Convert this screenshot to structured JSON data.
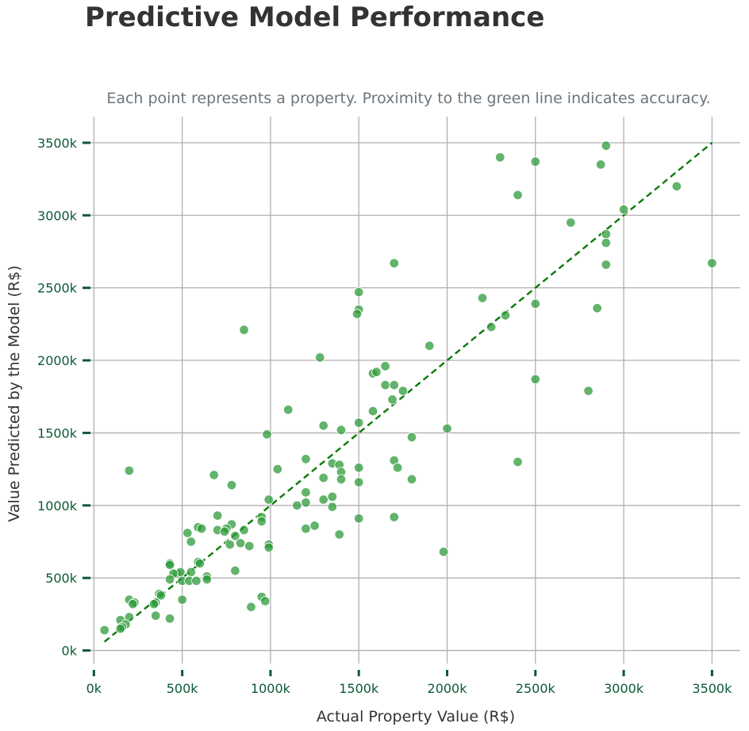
{
  "title": "Predictive Model Performance",
  "subtitle": "Each point represents a property. Proximity to the green line indicates accuracy.",
  "colors": {
    "points": "#2e9a3a",
    "reference_line": "#0a7a0a",
    "tick_text": "#0b5a35",
    "tick_mark": "#0b5a35",
    "grid": "#b0b0b0",
    "title": "#333333",
    "subtitle": "#6c757d"
  },
  "chart_data": {
    "type": "scatter",
    "title": "Predictive Model Performance",
    "subtitle": "Each point represents a property. Proximity to the green line indicates accuracy.",
    "xlabel": "Actual Property Value (R$)",
    "ylabel": "Value Predicted by the Model (R$)",
    "xlim": [
      -60000,
      3660000
    ],
    "ylim": [
      -90000,
      3680000
    ],
    "x_ticks": [
      0,
      500000,
      1000000,
      1500000,
      2000000,
      2500000,
      3000000,
      3500000
    ],
    "x_tick_labels": [
      "0k",
      "500k",
      "1000k",
      "1500k",
      "2000k",
      "2500k",
      "3000k",
      "3500k"
    ],
    "y_ticks": [
      0,
      500000,
      1000000,
      1500000,
      2000000,
      2500000,
      3000000,
      3500000
    ],
    "y_tick_labels": [
      "0k",
      "500k",
      "1000k",
      "1500k",
      "2000k",
      "2500k",
      "3000k",
      "3500k"
    ],
    "grid": true,
    "reference_line": {
      "style": "dashed",
      "from": [
        60000,
        60000
      ],
      "to": [
        3500000,
        3500000
      ]
    },
    "series": [
      {
        "points": [
          [
            2300000,
            3400000
          ],
          [
            2500000,
            3370000
          ],
          [
            2900000,
            3480000
          ],
          [
            2870000,
            3350000
          ],
          [
            2400000,
            3140000
          ],
          [
            3300000,
            3200000
          ],
          [
            2700000,
            2950000
          ],
          [
            3000000,
            3040000
          ],
          [
            2900000,
            2870000
          ],
          [
            2900000,
            2810000
          ],
          [
            2900000,
            2660000
          ],
          [
            3500000,
            2670000
          ],
          [
            1700000,
            2670000
          ],
          [
            1500000,
            2470000
          ],
          [
            2200000,
            2430000
          ],
          [
            2500000,
            2390000
          ],
          [
            1500000,
            2350000
          ],
          [
            1490000,
            2320000
          ],
          [
            2330000,
            2310000
          ],
          [
            2250000,
            2230000
          ],
          [
            2850000,
            2360000
          ],
          [
            850000,
            2210000
          ],
          [
            1280000,
            2020000
          ],
          [
            1900000,
            2100000
          ],
          [
            1650000,
            1960000
          ],
          [
            1580000,
            1910000
          ],
          [
            1600000,
            1920000
          ],
          [
            1650000,
            1830000
          ],
          [
            1700000,
            1830000
          ],
          [
            1750000,
            1790000
          ],
          [
            1690000,
            1730000
          ],
          [
            2500000,
            1870000
          ],
          [
            2800000,
            1790000
          ],
          [
            1100000,
            1660000
          ],
          [
            1580000,
            1650000
          ],
          [
            1500000,
            1570000
          ],
          [
            1300000,
            1550000
          ],
          [
            1400000,
            1520000
          ],
          [
            2000000,
            1530000
          ],
          [
            1800000,
            1470000
          ],
          [
            980000,
            1490000
          ],
          [
            2400000,
            1300000
          ],
          [
            1700000,
            1310000
          ],
          [
            1720000,
            1260000
          ],
          [
            1500000,
            1260000
          ],
          [
            1350000,
            1290000
          ],
          [
            1390000,
            1280000
          ],
          [
            1400000,
            1230000
          ],
          [
            1200000,
            1320000
          ],
          [
            1040000,
            1250000
          ],
          [
            1300000,
            1190000
          ],
          [
            1400000,
            1180000
          ],
          [
            1500000,
            1160000
          ],
          [
            1800000,
            1180000
          ],
          [
            200000,
            1240000
          ],
          [
            680000,
            1210000
          ],
          [
            780000,
            1140000
          ],
          [
            1200000,
            1090000
          ],
          [
            1350000,
            1060000
          ],
          [
            1300000,
            1040000
          ],
          [
            990000,
            1040000
          ],
          [
            1200000,
            1020000
          ],
          [
            1150000,
            1000000
          ],
          [
            1350000,
            990000
          ],
          [
            700000,
            930000
          ],
          [
            950000,
            920000
          ],
          [
            1700000,
            920000
          ],
          [
            1500000,
            910000
          ],
          [
            850000,
            830000
          ],
          [
            780000,
            870000
          ],
          [
            1250000,
            860000
          ],
          [
            1200000,
            840000
          ],
          [
            950000,
            890000
          ],
          [
            590000,
            850000
          ],
          [
            610000,
            840000
          ],
          [
            700000,
            830000
          ],
          [
            750000,
            840000
          ],
          [
            740000,
            820000
          ],
          [
            530000,
            810000
          ],
          [
            800000,
            790000
          ],
          [
            1390000,
            800000
          ],
          [
            550000,
            750000
          ],
          [
            830000,
            740000
          ],
          [
            770000,
            730000
          ],
          [
            880000,
            720000
          ],
          [
            990000,
            730000
          ],
          [
            990000,
            710000
          ],
          [
            1980000,
            680000
          ],
          [
            430000,
            600000
          ],
          [
            430000,
            590000
          ],
          [
            590000,
            610000
          ],
          [
            600000,
            600000
          ],
          [
            550000,
            540000
          ],
          [
            470000,
            530000
          ],
          [
            490000,
            540000
          ],
          [
            450000,
            530000
          ],
          [
            800000,
            550000
          ],
          [
            640000,
            510000
          ],
          [
            430000,
            490000
          ],
          [
            500000,
            480000
          ],
          [
            540000,
            480000
          ],
          [
            580000,
            480000
          ],
          [
            640000,
            490000
          ],
          [
            370000,
            390000
          ],
          [
            380000,
            380000
          ],
          [
            500000,
            350000
          ],
          [
            350000,
            330000
          ],
          [
            340000,
            320000
          ],
          [
            200000,
            350000
          ],
          [
            230000,
            330000
          ],
          [
            220000,
            320000
          ],
          [
            950000,
            370000
          ],
          [
            970000,
            340000
          ],
          [
            890000,
            300000
          ],
          [
            350000,
            240000
          ],
          [
            430000,
            220000
          ],
          [
            200000,
            230000
          ],
          [
            150000,
            210000
          ],
          [
            180000,
            180000
          ],
          [
            160000,
            160000
          ],
          [
            150000,
            150000
          ],
          [
            60000,
            140000
          ]
        ]
      }
    ]
  }
}
